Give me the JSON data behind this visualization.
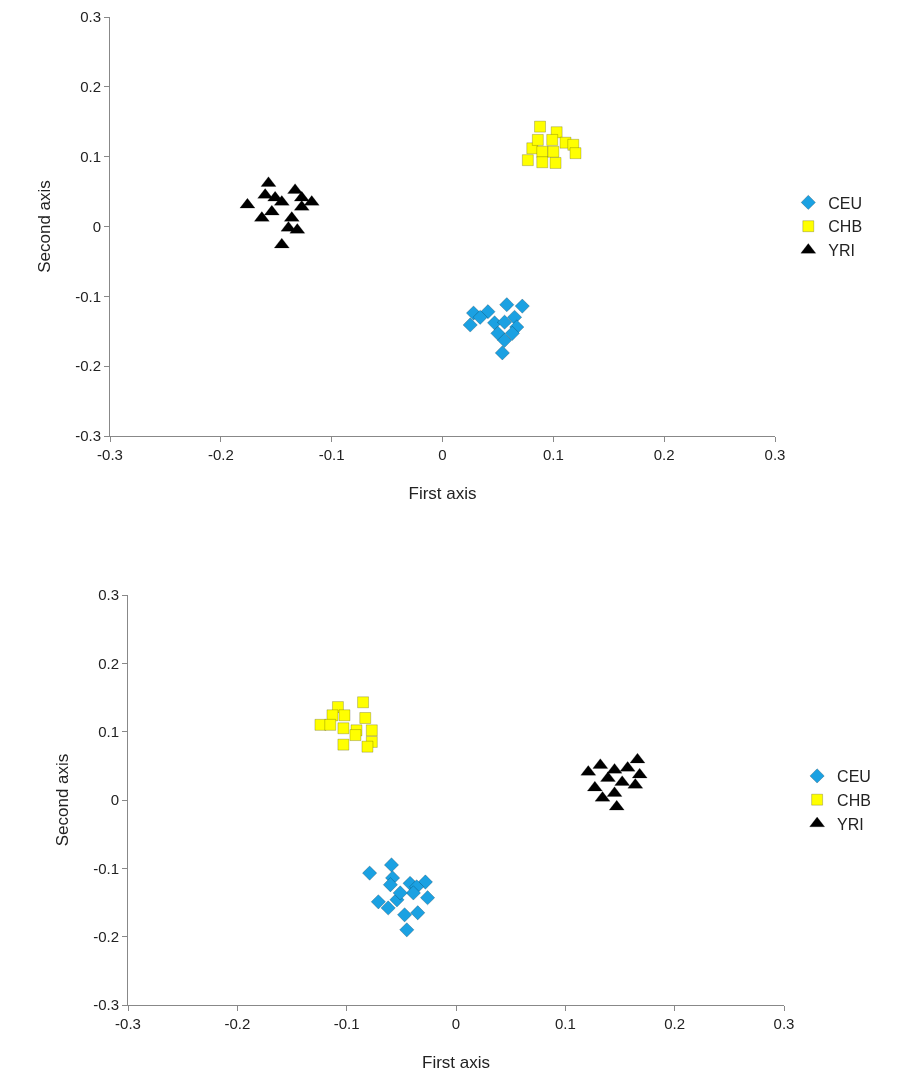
{
  "chart_data": [
    {
      "type": "scatter",
      "xlabel": "First axis",
      "ylabel": "Second axis",
      "xlim": [
        -0.3,
        0.3
      ],
      "ylim": [
        -0.3,
        0.3
      ],
      "xticks": [
        -0.3,
        -0.2,
        -0.1,
        0,
        0.1,
        0.2,
        0.3
      ],
      "yticks": [
        -0.3,
        -0.2,
        -0.1,
        0,
        0.1,
        0.2,
        0.3
      ],
      "grid": false,
      "legend": "right",
      "series": [
        {
          "name": "CEU",
          "color": "#1ba1e2",
          "marker": "diamond",
          "x": [
            0.028,
            0.025,
            0.041,
            0.058,
            0.072,
            0.047,
            0.056,
            0.065,
            0.067,
            0.05,
            0.056,
            0.054,
            0.034,
            0.063
          ],
          "values": [
            -0.124,
            -0.141,
            -0.122,
            -0.112,
            -0.114,
            -0.138,
            -0.137,
            -0.13,
            -0.144,
            -0.153,
            -0.163,
            -0.181,
            -0.13,
            -0.153
          ]
        },
        {
          "name": "CHB",
          "color": "#ffff00",
          "marker": "square",
          "x": [
            0.088,
            0.103,
            0.081,
            0.077,
            0.09,
            0.1,
            0.111,
            0.118,
            0.12,
            0.102,
            0.09,
            0.086,
            0.099
          ],
          "values": [
            0.143,
            0.135,
            0.112,
            0.095,
            0.107,
            0.107,
            0.12,
            0.117,
            0.105,
            0.091,
            0.092,
            0.124,
            0.124
          ]
        },
        {
          "name": "YRI",
          "color": "#000000",
          "marker": "triangle",
          "x": [
            -0.176,
            -0.157,
            -0.133,
            -0.118,
            -0.145,
            -0.154,
            -0.163,
            -0.136,
            -0.127,
            -0.139,
            -0.131,
            -0.145,
            -0.151,
            -0.16,
            -0.127
          ],
          "values": [
            0.031,
            0.062,
            0.052,
            0.035,
            0.035,
            0.021,
            0.012,
            0.012,
            0.028,
            -0.002,
            -0.005,
            -0.026,
            0.041,
            0.045,
            0.041
          ]
        }
      ]
    },
    {
      "type": "scatter",
      "xlabel": "First axis",
      "ylabel": "Second axis",
      "xlim": [
        -0.3,
        0.3
      ],
      "ylim": [
        -0.3,
        0.3
      ],
      "xticks": [
        -0.3,
        -0.2,
        -0.1,
        0,
        0.1,
        0.2,
        0.3
      ],
      "yticks": [
        -0.3,
        -0.2,
        -0.1,
        0,
        0.1,
        0.2,
        0.3
      ],
      "grid": false,
      "legend": "right",
      "series": [
        {
          "name": "CEU",
          "color": "#1ba1e2",
          "marker": "diamond",
          "x": [
            -0.079,
            -0.059,
            -0.058,
            -0.06,
            -0.042,
            -0.028,
            -0.036,
            -0.026,
            -0.071,
            -0.054,
            -0.039,
            -0.062,
            -0.047,
            -0.035,
            -0.045,
            -0.051
          ],
          "values": [
            -0.107,
            -0.095,
            -0.114,
            -0.124,
            -0.122,
            -0.12,
            -0.127,
            -0.143,
            -0.149,
            -0.146,
            -0.136,
            -0.158,
            -0.168,
            -0.165,
            -0.19,
            -0.136
          ]
        },
        {
          "name": "CHB",
          "color": "#ffff00",
          "marker": "square",
          "x": [
            -0.085,
            -0.108,
            -0.124,
            -0.113,
            -0.102,
            -0.083,
            -0.115,
            -0.103,
            -0.091,
            -0.077,
            -0.077,
            -0.103,
            -0.092,
            -0.081
          ],
          "values": [
            0.143,
            0.136,
            0.11,
            0.124,
            0.124,
            0.12,
            0.11,
            0.105,
            0.102,
            0.102,
            0.085,
            0.081,
            0.095,
            0.078
          ]
        },
        {
          "name": "YRI",
          "color": "#000000",
          "marker": "triangle",
          "x": [
            0.121,
            0.132,
            0.145,
            0.157,
            0.166,
            0.168,
            0.127,
            0.139,
            0.152,
            0.164,
            0.134,
            0.145,
            0.147
          ],
          "values": [
            0.041,
            0.051,
            0.044,
            0.047,
            0.059,
            0.037,
            0.018,
            0.032,
            0.026,
            0.022,
            0.003,
            0.01,
            -0.01
          ]
        }
      ]
    }
  ]
}
